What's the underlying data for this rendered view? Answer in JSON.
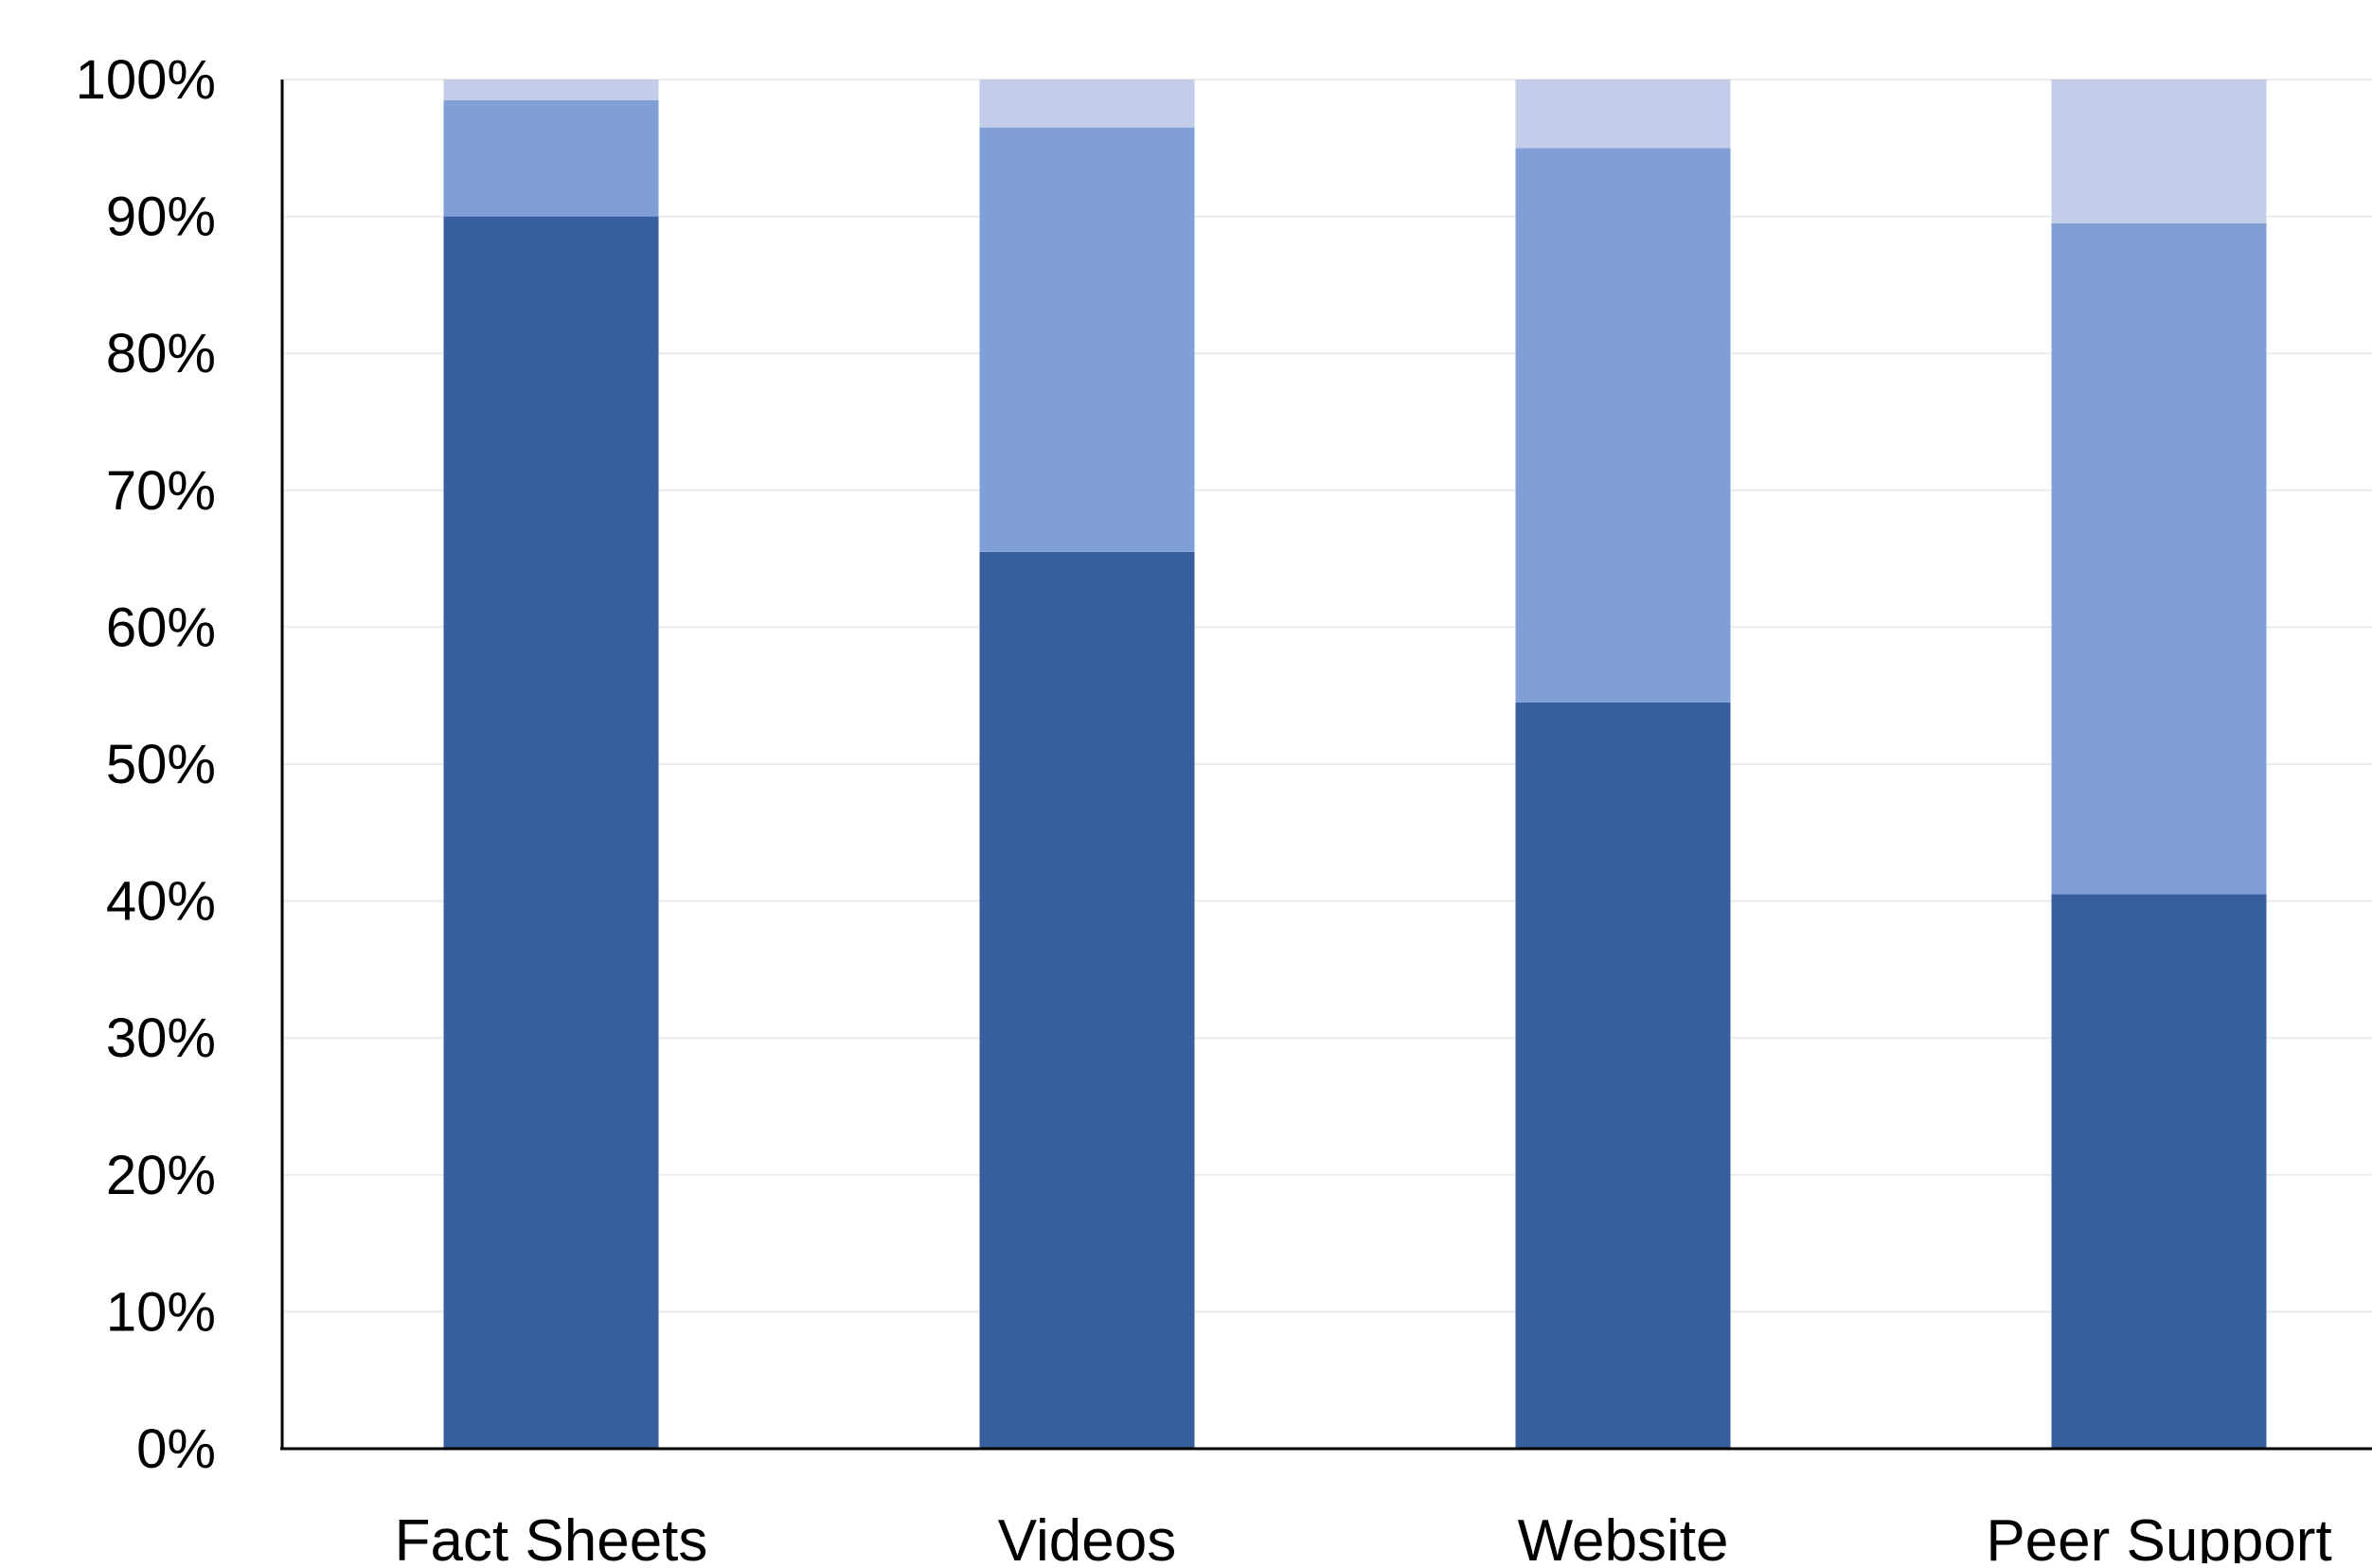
{
  "chart_data": {
    "type": "bar",
    "stacked": true,
    "percent": true,
    "categories": [
      "Fact Sheets",
      "Videos",
      "Website",
      "Peer Support"
    ],
    "series": [
      {
        "values": [
          90,
          65.5,
          54.5,
          40.5
        ],
        "color": "#375E9F"
      },
      {
        "values": [
          8.5,
          31,
          40.5,
          49
        ],
        "color": "#809FD7"
      },
      {
        "values": [
          1.5,
          3.5,
          5,
          10.5
        ],
        "color": "#C3CCE8"
      }
    ],
    "ylim": [
      0,
      100
    ],
    "yticks": [
      "0%",
      "10%",
      "20%",
      "30%",
      "40%",
      "50%",
      "60%",
      "70%",
      "80%",
      "90%",
      "100%"
    ],
    "grid": true,
    "gridColor": "#EBEBEB",
    "axisColor": "#000000"
  }
}
